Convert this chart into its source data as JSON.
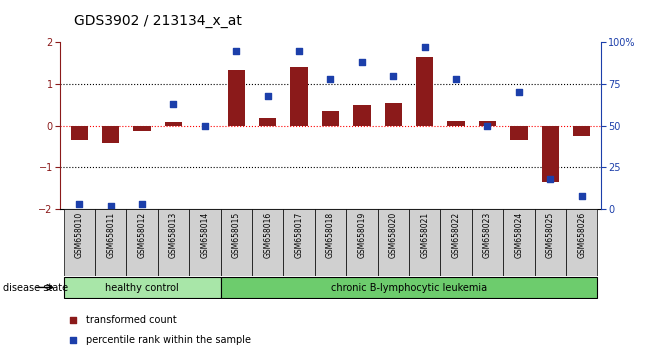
{
  "title": "GDS3902 / 213134_x_at",
  "samples": [
    "GSM658010",
    "GSM658011",
    "GSM658012",
    "GSM658013",
    "GSM658014",
    "GSM658015",
    "GSM658016",
    "GSM658017",
    "GSM658018",
    "GSM658019",
    "GSM658020",
    "GSM658021",
    "GSM658022",
    "GSM658023",
    "GSM658024",
    "GSM658025",
    "GSM658026"
  ],
  "red_values": [
    -0.35,
    -0.42,
    -0.12,
    0.08,
    0.0,
    1.35,
    0.18,
    1.4,
    0.35,
    0.5,
    0.55,
    1.65,
    0.12,
    0.12,
    -0.35,
    -1.35,
    -0.25
  ],
  "blue_values": [
    3,
    2,
    3,
    63,
    50,
    95,
    68,
    95,
    78,
    88,
    80,
    97,
    78,
    50,
    70,
    18,
    8
  ],
  "groups": [
    {
      "label": "healthy control",
      "start": 0,
      "end": 5,
      "color": "#a8e6a8"
    },
    {
      "label": "chronic B-lymphocytic leukemia",
      "start": 5,
      "end": 17,
      "color": "#6dcc6d"
    }
  ],
  "ylim_left": [
    -2,
    2
  ],
  "ylim_right": [
    0,
    100
  ],
  "yticks_left": [
    -2,
    -1,
    0,
    1,
    2
  ],
  "yticks_right": [
    0,
    25,
    50,
    75,
    100
  ],
  "ytick_labels_right": [
    "0",
    "25",
    "50",
    "75",
    "100%"
  ],
  "red_color": "#8b1a1a",
  "blue_color": "#1c3faa",
  "bar_width": 0.55,
  "background_color": "#ffffff",
  "disease_state_label": "disease state",
  "legend_red": "transformed count",
  "legend_blue": "percentile rank within the sample",
  "grid_dotted_values": [
    -1,
    0,
    1
  ],
  "sample_box_color": "#d0d0d0",
  "title_fontsize": 10,
  "tick_fontsize": 7,
  "label_fontsize": 7,
  "sample_fontsize": 5.5
}
